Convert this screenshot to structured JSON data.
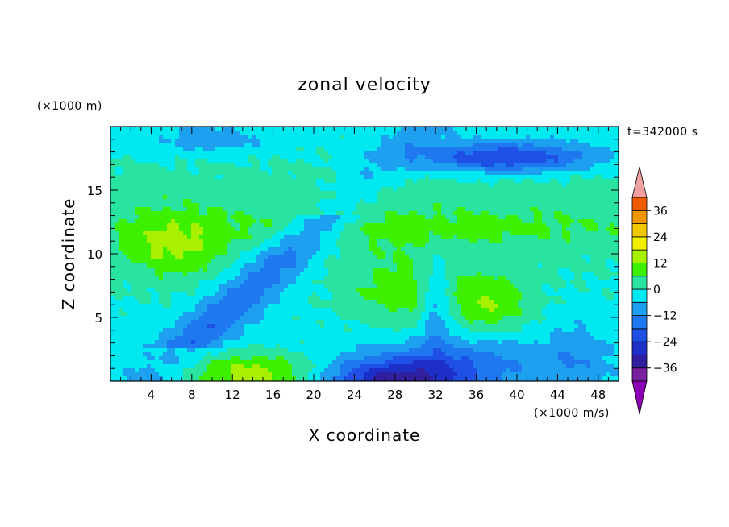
{
  "chart_data": {
    "type": "heatmap",
    "title": "zonal velocity",
    "xlabel": "X coordinate",
    "ylabel": "Z coordinate",
    "x_unit": "(×1000 m/s)",
    "y_unit": "(×1000 m)",
    "time_label": "t=342000 s",
    "xlim": [
      0,
      50
    ],
    "ylim": [
      0,
      20
    ],
    "x_ticks": [
      4,
      8,
      12,
      16,
      20,
      24,
      28,
      32,
      36,
      40,
      44,
      48
    ],
    "y_ticks": [
      5,
      10,
      15
    ],
    "colorbar": {
      "ticks": [
        36,
        24,
        12,
        0,
        -12,
        -24,
        -36
      ],
      "tick_labels": [
        "36",
        "24",
        "12",
        "0",
        "−12",
        "−24",
        "−36"
      ],
      "levels": [
        -42,
        -36,
        -30,
        -24,
        -18,
        -12,
        -6,
        0,
        6,
        12,
        18,
        24,
        30,
        36,
        42
      ],
      "colors": [
        "#7a1fa0",
        "#3020a0",
        "#1e2ec8",
        "#1e50e6",
        "#1e78f0",
        "#1ea0f0",
        "#00e8f0",
        "#28e4a0",
        "#3cf000",
        "#a8f000",
        "#f0f000",
        "#f0c800",
        "#f09600",
        "#f05a00",
        "#e81e1e",
        "#f0a0a0"
      ],
      "under_color": "#8c00b4",
      "over_color": "#f0a0a0"
    },
    "field_features": [
      {
        "x": 13,
        "z": 0.5,
        "value": 20
      },
      {
        "x": 5,
        "z": 11,
        "value": 16
      },
      {
        "x": 13,
        "z": 8,
        "value": -14
      },
      {
        "x": 28,
        "z": 0.6,
        "value": -24
      },
      {
        "x": 28,
        "z": 7,
        "value": 10
      },
      {
        "x": 37.5,
        "z": 6,
        "value": 18
      },
      {
        "x": 39,
        "z": 17.5,
        "value": -20
      },
      {
        "x": 29,
        "z": 14,
        "value": 2
      },
      {
        "x": 40,
        "z": 11,
        "value": 3
      }
    ]
  }
}
